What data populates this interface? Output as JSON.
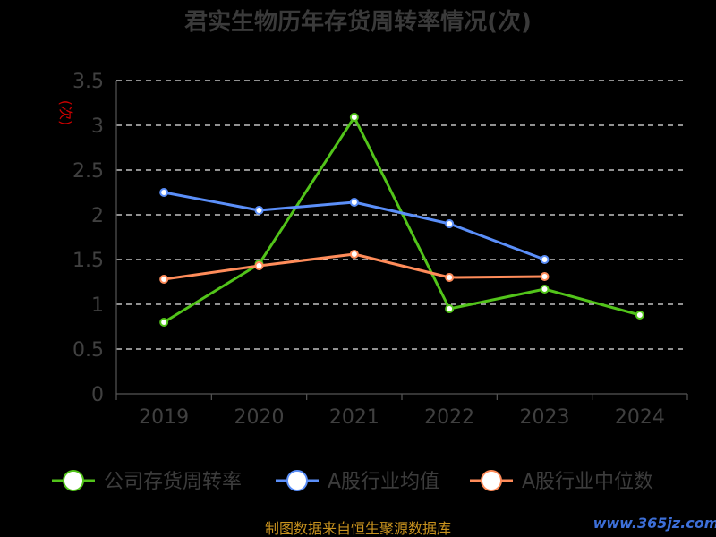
{
  "chart_data": {
    "type": "line",
    "title": "君实生物历年存货周转率情况(次)",
    "ylabel": "(次)",
    "xlabel": "",
    "categories": [
      "2019",
      "2020",
      "2021",
      "2022",
      "2023",
      "2024"
    ],
    "y_ticks": [
      "0",
      "0.5",
      "1",
      "1.5",
      "2",
      "2.5",
      "3",
      "3.5"
    ],
    "ylim": [
      0,
      3.5
    ],
    "grid": true,
    "legend_position": "bottom",
    "series": [
      {
        "name": "公司存货周转率",
        "color": "#52c41a",
        "values": [
          0.8,
          1.45,
          3.09,
          0.95,
          1.17,
          0.88
        ]
      },
      {
        "name": "A股行业均值",
        "color": "#5b8ff9",
        "values": [
          2.25,
          2.05,
          2.14,
          1.9,
          1.5,
          null
        ]
      },
      {
        "name": "A股行业中位数",
        "color": "#ff8c5a",
        "values": [
          1.28,
          1.43,
          1.56,
          1.3,
          1.31,
          null
        ]
      }
    ]
  },
  "source_note": "制图数据来自恒生聚源数据库",
  "watermark": "www.365jz.com"
}
